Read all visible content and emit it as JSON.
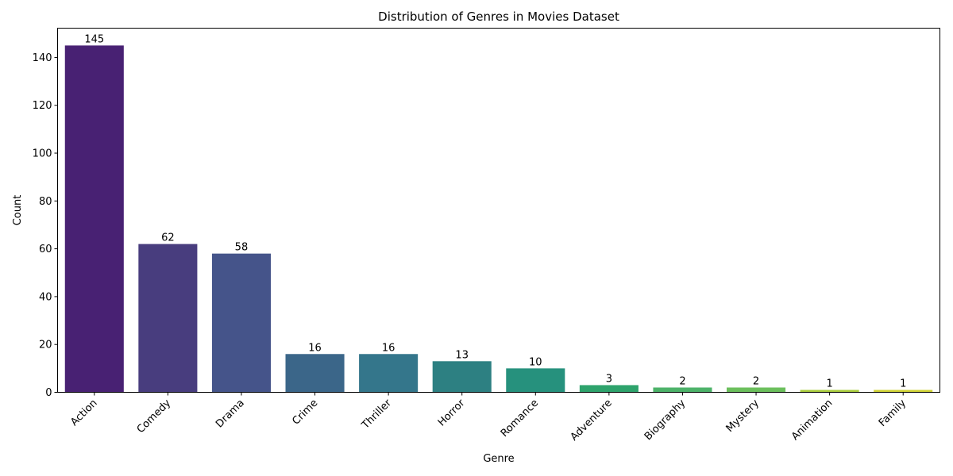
{
  "chart_data": {
    "type": "bar",
    "title": "Distribution of Genres in Movies Dataset",
    "xlabel": "Genre",
    "ylabel": "Count",
    "categories": [
      "Action",
      "Comedy",
      "Drama",
      "Crime",
      "Thriller",
      "Horror",
      "Romance",
      "Adventure",
      "Biography",
      "Mystery",
      "Animation",
      "Family"
    ],
    "values": [
      145,
      62,
      58,
      16,
      16,
      13,
      10,
      3,
      2,
      2,
      1,
      1
    ],
    "colors": [
      "#482173",
      "#483d7e",
      "#45548a",
      "#3b6689",
      "#34768b",
      "#2d8082",
      "#26917d",
      "#2ea36c",
      "#4cb269",
      "#6bbf5c",
      "#a9cc3c",
      "#cfd234"
    ],
    "ylim": [
      0,
      152.25
    ],
    "yticks": [
      0,
      20,
      40,
      60,
      80,
      100,
      120,
      140
    ],
    "grid": false,
    "legend": "none"
  }
}
